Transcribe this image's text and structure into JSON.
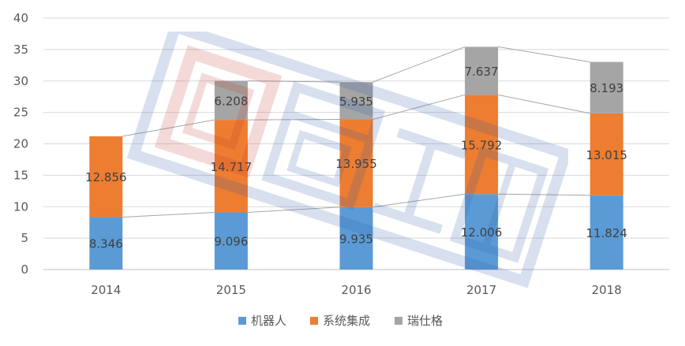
{
  "chart_data": {
    "type": "bar",
    "stacked": true,
    "categories": [
      "2014",
      "2015",
      "2016",
      "2017",
      "2018"
    ],
    "series": [
      {
        "name": "机器人",
        "values": [
          8.346,
          9.096,
          9.935,
          12.006,
          11.824
        ],
        "color": "#5B9BD5"
      },
      {
        "name": "系统集成",
        "values": [
          12.856,
          14.717,
          13.955,
          15.792,
          13.015
        ],
        "color": "#ED7D31"
      },
      {
        "name": "瑞仕格",
        "values": [
          null,
          6.208,
          5.935,
          7.637,
          8.193
        ],
        "color": "#A5A5A5"
      }
    ],
    "data_labels": [
      [
        "8.346",
        "9.096",
        "9.935",
        "12.006",
        "11.824"
      ],
      [
        "12.856",
        "14.717",
        "13.955",
        "15.792",
        "13.015"
      ],
      [
        "",
        "6.208",
        "5.935",
        "7.637",
        "8.193"
      ]
    ],
    "ylim": [
      0,
      40
    ],
    "yticks": [
      "0",
      "5",
      "10",
      "15",
      "20",
      "25",
      "30",
      "35",
      "40"
    ],
    "grid": true,
    "series_lines": true,
    "legend_position": "bottom",
    "title": "",
    "xlabel": "",
    "ylabel": ""
  },
  "colors": {
    "grid": "#D9D9D9",
    "axis": "#BFBFBF",
    "series_line": "#A6A6A6"
  }
}
